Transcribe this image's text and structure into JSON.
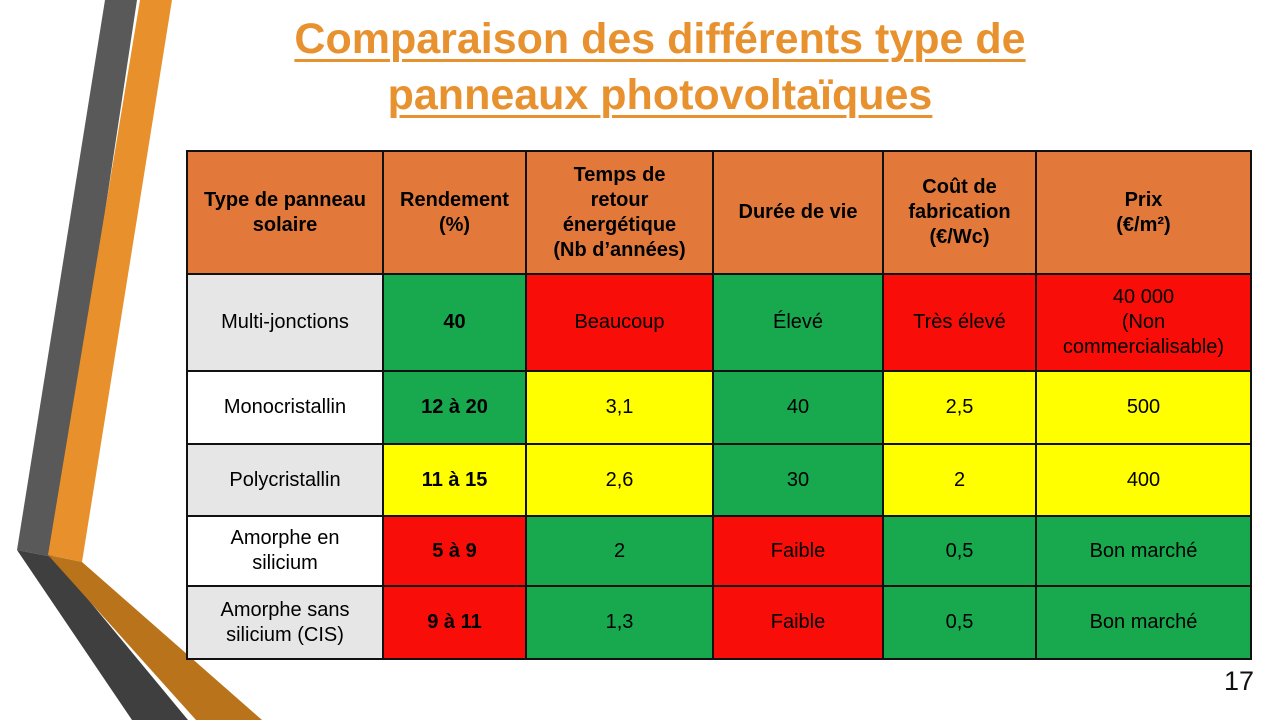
{
  "slide": {
    "title_line1": "Comparaison des différents type de",
    "title_line2": "panneaux photovoltaïques",
    "page_number": "17"
  },
  "colors": {
    "title_orange": "#E8912F",
    "header_orange": "#E2793B",
    "green": "#18A84E",
    "red": "#F90D09",
    "yellow": "#FFFF00",
    "gray_cell": "#E7E6E6",
    "stripe_gray_upper": "#595959",
    "stripe_gray_lower": "#3F3F3F",
    "stripe_orange_upper": "#E8912C",
    "stripe_orange_lower": "#B9731B"
  },
  "table": {
    "headers": [
      "Type de panneau\nsolaire",
      "Rendement\n(%)",
      "Temps de\nretour\nénergétique\n(Nb d’années)",
      "Durée de vie",
      "Coût de\nfabrication\n(€/Wc)",
      "Prix\n(€/m²)"
    ],
    "rows": [
      {
        "cells": [
          {
            "text": "Multi-jonctions",
            "bg": "gray",
            "bold": false
          },
          {
            "text": "40",
            "bg": "green",
            "bold": true
          },
          {
            "text": "Beaucoup",
            "bg": "red",
            "bold": false
          },
          {
            "text": "Élevé",
            "bg": "green",
            "bold": false
          },
          {
            "text": "Très élevé",
            "bg": "red",
            "bold": false
          },
          {
            "text": "40 000\n(Non\ncommercialisable)",
            "bg": "red",
            "bold": false
          }
        ]
      },
      {
        "cells": [
          {
            "text": "Monocristallin",
            "bg": "white",
            "bold": false
          },
          {
            "text": "12 à 20",
            "bg": "green",
            "bold": true
          },
          {
            "text": "3,1",
            "bg": "yellow",
            "bold": false
          },
          {
            "text": "40",
            "bg": "green",
            "bold": false
          },
          {
            "text": "2,5",
            "bg": "yellow",
            "bold": false
          },
          {
            "text": "500",
            "bg": "yellow",
            "bold": false
          }
        ]
      },
      {
        "cells": [
          {
            "text": "Polycristallin",
            "bg": "gray",
            "bold": false
          },
          {
            "text": "11 à 15",
            "bg": "yellow",
            "bold": true
          },
          {
            "text": "2,6",
            "bg": "yellow",
            "bold": false
          },
          {
            "text": "30",
            "bg": "green",
            "bold": false
          },
          {
            "text": "2",
            "bg": "yellow",
            "bold": false
          },
          {
            "text": "400",
            "bg": "yellow",
            "bold": false
          }
        ]
      },
      {
        "cells": [
          {
            "text": "Amorphe en\nsilicium",
            "bg": "white",
            "bold": false
          },
          {
            "text": "5 à 9",
            "bg": "red",
            "bold": true
          },
          {
            "text": "2",
            "bg": "green",
            "bold": false
          },
          {
            "text": "Faible",
            "bg": "red",
            "bold": false
          },
          {
            "text": "0,5",
            "bg": "green",
            "bold": false
          },
          {
            "text": "Bon marché",
            "bg": "green",
            "bold": false
          }
        ]
      },
      {
        "cells": [
          {
            "text": "Amorphe sans\nsilicium (CIS)",
            "bg": "gray",
            "bold": false
          },
          {
            "text": "9 à 11",
            "bg": "red",
            "bold": true
          },
          {
            "text": "1,3",
            "bg": "green",
            "bold": false
          },
          {
            "text": "Faible",
            "bg": "red",
            "bold": false
          },
          {
            "text": "0,5",
            "bg": "green",
            "bold": false
          },
          {
            "text": "Bon marché",
            "bg": "green",
            "bold": false
          }
        ]
      }
    ]
  },
  "chart_data": {
    "type": "table",
    "title": "Comparaison des différents type de panneaux photovoltaïques",
    "columns": [
      "Type de panneau solaire",
      "Rendement (%)",
      "Temps de retour énergétique (Nb d’années)",
      "Durée de vie",
      "Coût de fabrication (€/Wc)",
      "Prix (€/m²)"
    ],
    "rows": [
      [
        "Multi-jonctions",
        "40",
        "Beaucoup",
        "Élevé",
        "Très élevé",
        "40 000 (Non commercialisable)"
      ],
      [
        "Monocristallin",
        "12 à 20",
        "3,1",
        "40",
        "2,5",
        "500"
      ],
      [
        "Polycristallin",
        "11 à 15",
        "2,6",
        "30",
        "2",
        "400"
      ],
      [
        "Amorphe en silicium",
        "5 à 9",
        "2",
        "Faible",
        "0,5",
        "Bon marché"
      ],
      [
        "Amorphe sans silicium (CIS)",
        "9 à 11",
        "1,3",
        "Faible",
        "0,5",
        "Bon marché"
      ]
    ]
  }
}
